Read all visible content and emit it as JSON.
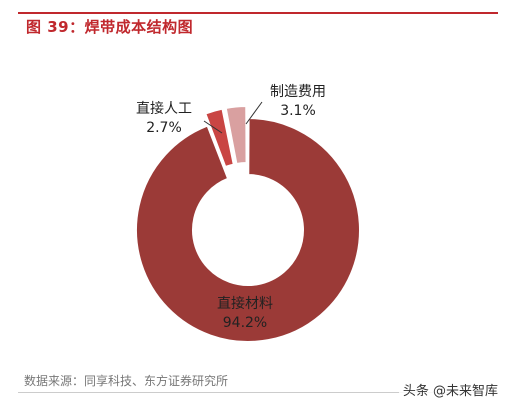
{
  "header": {
    "title": "图 39：焊带成本结构图"
  },
  "chart_data": {
    "type": "pie",
    "title": "",
    "slices": [
      {
        "name": "直接材料",
        "value": 94.2,
        "label": "94.2%",
        "color": "#9b3a37"
      },
      {
        "name": "直接人工",
        "value": 2.7,
        "label": "2.7%",
        "color": "#c94543"
      },
      {
        "name": "制造费用",
        "value": 3.1,
        "label": "3.1%",
        "color": "#d9a0a0"
      }
    ],
    "legend": "none"
  },
  "footer": {
    "source": "数据来源：同享科技、东方证券研究所",
    "watermark": "头条 @未来智库"
  }
}
